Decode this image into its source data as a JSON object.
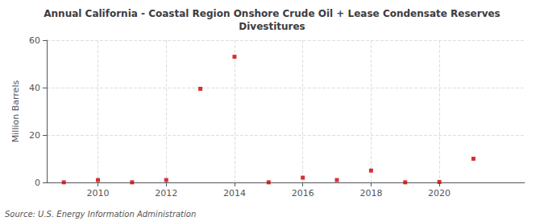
{
  "chart_data": {
    "type": "scatter",
    "title": "Annual California - Coastal Region Onshore Crude Oil + Lease Condensate Reserves\nDivestitures",
    "ylabel": "Million Barrels",
    "source": "Source: U.S. Energy Information Administration",
    "x": [
      2009,
      2010,
      2011,
      2012,
      2013,
      2014,
      2015,
      2016,
      2017,
      2018,
      2019,
      2020,
      2021
    ],
    "values": [
      0.05,
      1.0,
      0.05,
      1.0,
      39.5,
      53.0,
      0.05,
      2.0,
      1.0,
      5.0,
      0.05,
      0.2,
      10.0
    ],
    "color": "#cc0000",
    "marker": "square",
    "xlim": [
      2008.5,
      2022.5
    ],
    "xticks": [
      2010,
      2012,
      2014,
      2016,
      2018,
      2020
    ],
    "ylim": [
      0,
      60
    ],
    "yticks": [
      0,
      20,
      40,
      60
    ],
    "grid": true
  }
}
